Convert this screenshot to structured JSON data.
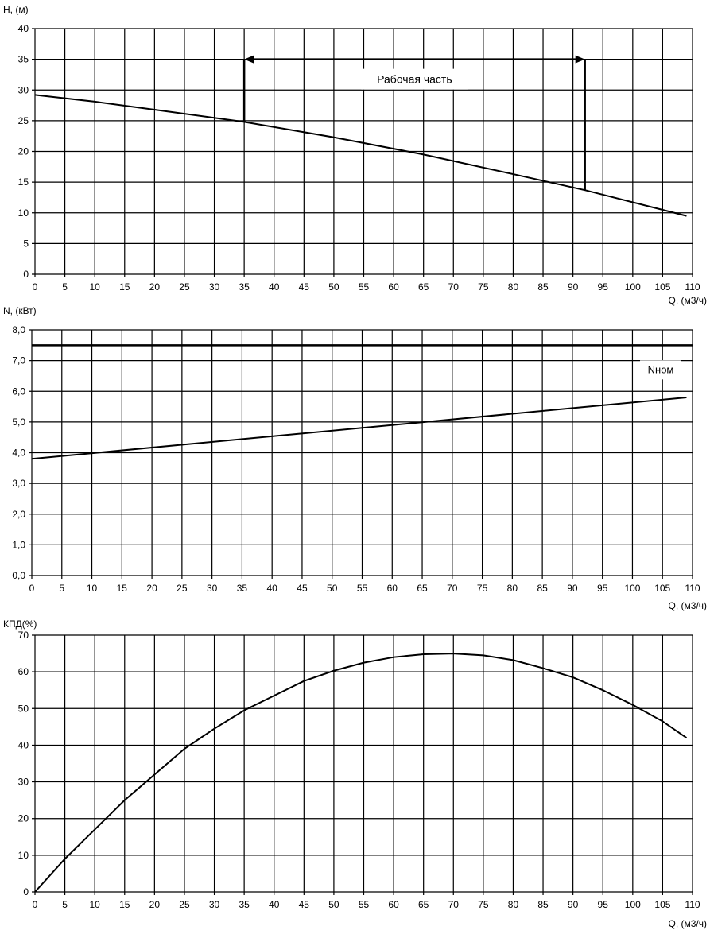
{
  "chart_data": [
    {
      "type": "line",
      "id": "head",
      "ylabel": "H, (м)",
      "xlabel": "Q, (м3/ч)",
      "xlim": [
        0,
        110
      ],
      "xstep": 5,
      "ylim": [
        0,
        40
      ],
      "ystep": 5,
      "ydecimals": 0,
      "grid": true,
      "series": [
        {
          "name": "H",
          "x": [
            0,
            10,
            20,
            35,
            50,
            65,
            80,
            92,
            109
          ],
          "y": [
            29.2,
            28.1,
            26.8,
            24.8,
            22.3,
            19.5,
            16.3,
            13.7,
            9.5
          ]
        }
      ],
      "annotation": {
        "text": "Рабочая часть",
        "x_start": 35,
        "x_end": 92,
        "arrow_y": 35,
        "y_start_curve": 24.8,
        "y_end_curve": 13.7
      }
    },
    {
      "type": "line",
      "id": "power",
      "ylabel": "N, (кВт)",
      "xlabel": "Q, (м3/ч)",
      "xlim": [
        0,
        110
      ],
      "xstep": 5,
      "ylim": [
        0,
        8
      ],
      "ystep": 1,
      "ydecimals": 1,
      "grid": true,
      "series": [
        {
          "name": "N",
          "x": [
            0,
            109
          ],
          "y": [
            3.8,
            5.8
          ]
        }
      ],
      "reference_line": {
        "label": "Nном",
        "y": 7.5
      }
    },
    {
      "type": "line",
      "id": "efficiency",
      "ylabel": "КПД(%)",
      "xlabel": "Q, (м3/ч)",
      "xlim": [
        0,
        110
      ],
      "xstep": 5,
      "ylim": [
        0,
        70
      ],
      "ystep": 10,
      "ydecimals": 0,
      "grid": true,
      "series": [
        {
          "name": "КПД",
          "x": [
            0,
            5,
            10,
            15,
            20,
            25,
            30,
            35,
            40,
            45,
            50,
            55,
            60,
            65,
            70,
            75,
            80,
            85,
            90,
            95,
            100,
            105,
            109
          ],
          "y": [
            0,
            9,
            17,
            25,
            32,
            39,
            44.5,
            49.5,
            53.5,
            57.5,
            60.3,
            62.5,
            64,
            64.8,
            65,
            64.5,
            63.2,
            61,
            58.5,
            55,
            51,
            46.5,
            42
          ]
        }
      ]
    }
  ]
}
